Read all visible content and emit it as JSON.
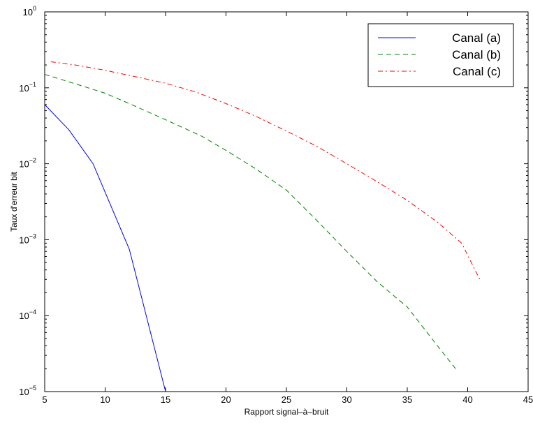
{
  "chart_data": {
    "type": "line",
    "title": "",
    "xlabel": "Rapport signal–à–bruit",
    "ylabel": "Taux d'erreur bit",
    "xlim": [
      5,
      45
    ],
    "ylim": [
      1e-05,
      1
    ],
    "yscale": "log",
    "xticks": [
      5,
      10,
      15,
      20,
      25,
      30,
      35,
      40,
      45
    ],
    "yticks": [
      {
        "value": 1e-05,
        "base": "10",
        "exp": "−5"
      },
      {
        "value": 0.0001,
        "base": "10",
        "exp": "−4"
      },
      {
        "value": 0.001,
        "base": "10",
        "exp": "−3"
      },
      {
        "value": 0.01,
        "base": "10",
        "exp": "−2"
      },
      {
        "value": 0.1,
        "base": "10",
        "exp": "−1"
      },
      {
        "value": 1,
        "base": "10",
        "exp": "0"
      }
    ],
    "grid": false,
    "legend_position": "top-right",
    "series": [
      {
        "name": "Canal (a)",
        "color": "#0000ff",
        "style": "solid",
        "points": [
          [
            5,
            0.06
          ],
          [
            7,
            0.028
          ],
          [
            9,
            0.01
          ],
          [
            12,
            0.00075
          ],
          [
            15,
            1e-05
          ]
        ]
      },
      {
        "name": "Canal (b)",
        "color": "#008000",
        "style": "dashed",
        "points": [
          [
            5,
            0.15
          ],
          [
            7,
            0.12
          ],
          [
            10,
            0.085
          ],
          [
            12,
            0.062
          ],
          [
            15,
            0.038
          ],
          [
            18,
            0.023
          ],
          [
            20,
            0.015
          ],
          [
            22.5,
            0.0085
          ],
          [
            25,
            0.0045
          ],
          [
            27.5,
            0.0018
          ],
          [
            30,
            0.0007
          ],
          [
            32.5,
            0.00028
          ],
          [
            35,
            0.00013
          ],
          [
            37.5,
            4e-05
          ],
          [
            39,
            2e-05
          ]
        ]
      },
      {
        "name": "Canal (c)",
        "color": "#ff0000",
        "style": "dashdot",
        "points": [
          [
            5.5,
            0.22
          ],
          [
            7.5,
            0.2
          ],
          [
            10,
            0.17
          ],
          [
            12.5,
            0.14
          ],
          [
            15,
            0.115
          ],
          [
            17.5,
            0.088
          ],
          [
            20,
            0.062
          ],
          [
            22.5,
            0.042
          ],
          [
            25,
            0.027
          ],
          [
            27.5,
            0.017
          ],
          [
            30,
            0.01
          ],
          [
            32.5,
            0.0058
          ],
          [
            35,
            0.0033
          ],
          [
            37.5,
            0.0017
          ],
          [
            39.5,
            0.0009
          ],
          [
            41,
            0.0003
          ]
        ]
      }
    ]
  }
}
